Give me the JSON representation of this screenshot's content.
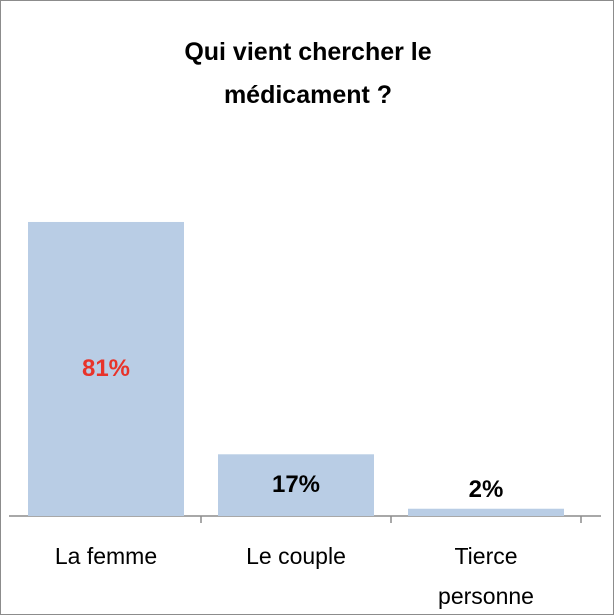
{
  "chart_data": {
    "type": "bar",
    "title": "Qui vient chercher le médicament ?",
    "categories": [
      "La femme",
      "Le couple",
      "Tierce personne"
    ],
    "values": [
      81,
      17,
      2
    ],
    "value_labels": [
      "81%",
      "17%",
      "2%"
    ],
    "color": "#b9cde5",
    "label_colors": [
      "#e8332a",
      "#000000",
      "#000000"
    ]
  }
}
